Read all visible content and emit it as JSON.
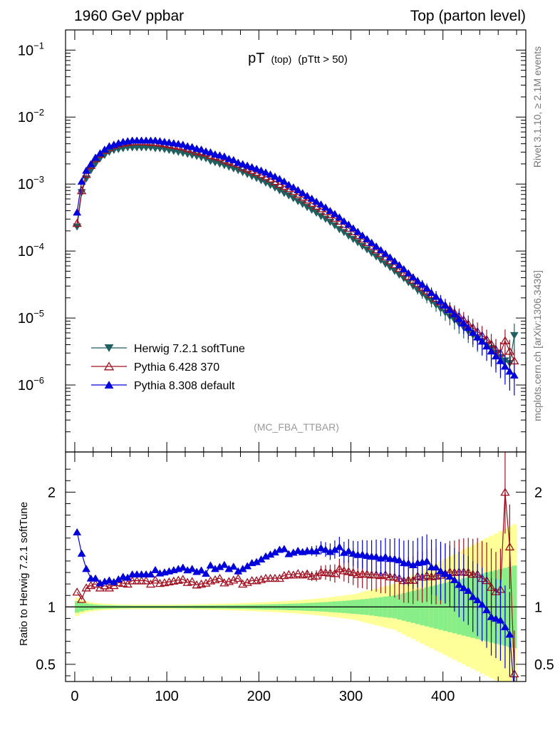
{
  "header": {
    "left": "1960 GeV ppbar",
    "right": "Top (parton level)"
  },
  "side": {
    "rivet": "Rivet 3.1.10, ≥ 2.1M events",
    "source": "mcplots.cern.ch [arXiv:1306.3436]"
  },
  "colors": {
    "herwig": "#1f5f5f",
    "pythia6": "#a01020",
    "pythia8": "#0000dd",
    "band_outer": "#ffff99",
    "band_inner": "#88ee88"
  },
  "chart_data": [
    {
      "type": "line",
      "scale": "log",
      "title_main": "pT",
      "title_small": "(top)",
      "title_rest": "(pTtt > 50)",
      "watermark": "(MC_FBA_TTBAR)",
      "xlim": [
        -10,
        490
      ],
      "ylim": [
        1e-07,
        0.2
      ],
      "ytick_labels": [
        {
          "value": 0.1,
          "mant": "10",
          "exp": "−1"
        },
        {
          "value": 0.01,
          "mant": "10",
          "exp": "−2"
        },
        {
          "value": 0.001,
          "mant": "10",
          "exp": "−3"
        },
        {
          "value": 0.0001,
          "mant": "10",
          "exp": "−4"
        },
        {
          "value": 1e-05,
          "mant": "10",
          "exp": "−5"
        },
        {
          "value": 1e-06,
          "mant": "10",
          "exp": "−6"
        }
      ],
      "x": [
        2.5,
        7.5,
        12.5,
        17.5,
        22.5,
        27.5,
        32.5,
        37.5,
        42.5,
        47.5,
        52.5,
        57.5,
        62.5,
        67.5,
        72.5,
        77.5,
        82.5,
        87.5,
        92.5,
        97.5,
        102.5,
        107.5,
        112.5,
        117.5,
        122.5,
        127.5,
        132.5,
        137.5,
        142.5,
        147.5,
        152.5,
        157.5,
        162.5,
        167.5,
        172.5,
        177.5,
        182.5,
        187.5,
        192.5,
        197.5,
        202.5,
        207.5,
        212.5,
        217.5,
        222.5,
        227.5,
        232.5,
        237.5,
        242.5,
        247.5,
        252.5,
        257.5,
        262.5,
        267.5,
        272.5,
        277.5,
        282.5,
        287.5,
        292.5,
        297.5,
        302.5,
        307.5,
        312.5,
        317.5,
        322.5,
        327.5,
        332.5,
        337.5,
        342.5,
        347.5,
        352.5,
        357.5,
        362.5,
        367.5,
        372.5,
        377.5,
        382.5,
        387.5,
        392.5,
        397.5,
        402.5,
        407.5,
        412.5,
        417.5,
        422.5,
        427.5,
        432.5,
        437.5,
        442.5,
        447.5,
        452.5,
        457.5,
        462.5,
        467.5,
        472.5,
        477.5
      ],
      "series": [
        {
          "name": "Herwig 7.2.1 softTune",
          "marker": "triangle-down",
          "color": "#1f5f5f",
          "values": [
            0.00023,
            0.00075,
            0.0012,
            0.0016,
            0.002,
            0.0024,
            0.0027,
            0.003,
            0.0032,
            0.0033,
            0.0034,
            0.0035,
            0.0035,
            0.0035,
            0.0035,
            0.0035,
            0.0035,
            0.0034,
            0.0034,
            0.0033,
            0.0032,
            0.0031,
            0.003,
            0.0029,
            0.0028,
            0.0027,
            0.0026,
            0.0025,
            0.0024,
            0.0022,
            0.0021,
            0.002,
            0.0019,
            0.0018,
            0.0017,
            0.0016,
            0.0015,
            0.0014,
            0.0013,
            0.00122,
            0.00113,
            0.00104,
            0.00096,
            0.00088,
            0.0008,
            0.00073,
            0.00067,
            0.00061,
            0.00055,
            0.0005,
            0.00045,
            0.00041,
            0.00037,
            0.00033,
            0.0003,
            0.00027,
            0.00024,
            0.00021,
            0.00019,
            0.000168,
            0.00015,
            0.000134,
            0.000118,
            0.000105,
            9.3e-05,
            8.2e-05,
            7.3e-05,
            6.4e-05,
            5.7e-05,
            5e-05,
            4.4e-05,
            3.9e-05,
            3.4e-05,
            3e-05,
            2.6e-05,
            2.3e-05,
            2e-05,
            1.78e-05,
            1.56e-05,
            1.37e-05,
            1.2e-05,
            1.05e-05,
            9.3e-06,
            8.2e-06,
            7.2e-06,
            6.3e-06,
            5.6e-06,
            4.9e-06,
            4.4e-06,
            3.9e-06,
            3.5e-06,
            3e-06,
            2.6e-06,
            2.3e-06,
            2.1e-06,
            5.5e-06
          ]
        },
        {
          "name": "Pythia 6.428 370",
          "marker": "triangle-up-open",
          "color": "#a01020",
          "values": [
            0.00026,
            0.0008,
            0.0014,
            0.0019,
            0.0024,
            0.0028,
            0.0032,
            0.0035,
            0.0038,
            0.004,
            0.0041,
            0.0042,
            0.0043,
            0.0043,
            0.0043,
            0.0043,
            0.0042,
            0.0042,
            0.0041,
            0.004,
            0.0039,
            0.0038,
            0.0037,
            0.0036,
            0.0034,
            0.0033,
            0.0031,
            0.003,
            0.0029,
            0.0027,
            0.0026,
            0.0025,
            0.0023,
            0.0022,
            0.0021,
            0.002,
            0.0018,
            0.0017,
            0.0016,
            0.0015,
            0.0014,
            0.0013,
            0.0012,
            0.0011,
            0.001,
            0.00093,
            0.00086,
            0.00078,
            0.00071,
            0.00064,
            0.00058,
            0.00052,
            0.00047,
            0.00043,
            0.00039,
            0.00035,
            0.00031,
            0.00028,
            0.00025,
            0.00022,
            0.000195,
            0.000172,
            0.000152,
            0.000135,
            0.000119,
            0.000105,
            9.3e-05,
            8.2e-05,
            7.2e-05,
            6.3e-05,
            5.5e-05,
            4.8e-05,
            4.2e-05,
            3.7e-05,
            3.3e-05,
            2.9e-05,
            2.55e-05,
            2.25e-05,
            1.98e-05,
            1.75e-05,
            1.55e-05,
            1.37e-05,
            1.21e-05,
            1.07e-05,
            9.4e-06,
            8.2e-06,
            7.2e-06,
            6.3e-06,
            5.5e-06,
            4.8e-06,
            4.1e-06,
            3.4e-06,
            3e-06,
            4.6e-06,
            3.2e-06,
            2.3e-06
          ]
        },
        {
          "name": "Pythia 8.308 default",
          "marker": "triangle-up",
          "color": "#0000dd",
          "values": [
            0.00038,
            0.0011,
            0.0016,
            0.002,
            0.0025,
            0.0029,
            0.0033,
            0.0037,
            0.0039,
            0.0041,
            0.0043,
            0.0044,
            0.0045,
            0.0045,
            0.0045,
            0.0045,
            0.0045,
            0.0045,
            0.0044,
            0.0043,
            0.0042,
            0.0041,
            0.004,
            0.0039,
            0.0037,
            0.0036,
            0.0034,
            0.0033,
            0.0031,
            0.003,
            0.0028,
            0.0027,
            0.0026,
            0.0024,
            0.0023,
            0.0021,
            0.002,
            0.0019,
            0.0018,
            0.0017,
            0.0016,
            0.0015,
            0.0014,
            0.0013,
            0.0012,
            0.0011,
            0.00098,
            0.0009,
            0.00082,
            0.00074,
            0.00067,
            0.00061,
            0.00055,
            0.0005,
            0.00045,
            0.0004,
            0.00036,
            0.00032,
            0.00028,
            0.00025,
            0.00022,
            0.000195,
            0.000172,
            0.000152,
            0.000134,
            0.000118,
            0.000104,
            9.2e-05,
            8.1e-05,
            7.1e-05,
            6.2e-05,
            5.4e-05,
            4.7e-05,
            4.1e-05,
            3.6e-05,
            3.2e-05,
            2.8e-05,
            2.4e-05,
            2.1e-05,
            1.8e-05,
            1.55e-05,
            1.33e-05,
            1.15e-05,
            9.8e-06,
            8.4e-06,
            7.2e-06,
            6.1e-06,
            5.2e-06,
            4.5e-06,
            3.8e-06,
            3.2e-06,
            2.7e-06,
            2.3e-06,
            1.9e-06,
            1.6e-06,
            1.4e-06
          ]
        }
      ]
    },
    {
      "type": "line",
      "scale": "linear",
      "ylabel": "Ratio to Herwig 7.2.1 softTune",
      "xlim": [
        -10,
        490
      ],
      "ylim": [
        0.35,
        2.35
      ],
      "yticks": [
        0.5,
        1,
        2
      ],
      "ytick_labels": [
        "0.5",
        "1",
        "2"
      ],
      "xticks": [
        0,
        100,
        200,
        300,
        400
      ],
      "xtick_labels": [
        "0",
        "100",
        "200",
        "300",
        "400"
      ],
      "band_inner_halfwidth": [
        0.05,
        0.04,
        0.03,
        0.025,
        0.02,
        0.018,
        0.016,
        0.015,
        0.014,
        0.013,
        0.012,
        0.012,
        0.011,
        0.011,
        0.011,
        0.011,
        0.011,
        0.011,
        0.011,
        0.011,
        0.011,
        0.011,
        0.012,
        0.012,
        0.012,
        0.012,
        0.013,
        0.013,
        0.013,
        0.014,
        0.014,
        0.015,
        0.015,
        0.016,
        0.016,
        0.017,
        0.017,
        0.018,
        0.019,
        0.02,
        0.021,
        0.022,
        0.023,
        0.024,
        0.025,
        0.026,
        0.028,
        0.029,
        0.03,
        0.032,
        0.034,
        0.036,
        0.038,
        0.04,
        0.042,
        0.045,
        0.048,
        0.05,
        0.053,
        0.056,
        0.06,
        0.063,
        0.067,
        0.07,
        0.075,
        0.08,
        0.085,
        0.09,
        0.095,
        0.1,
        0.11,
        0.12,
        0.13,
        0.14,
        0.15,
        0.16,
        0.17,
        0.18,
        0.19,
        0.2,
        0.21,
        0.22,
        0.23,
        0.24,
        0.25,
        0.26,
        0.27,
        0.28,
        0.29,
        0.3,
        0.31,
        0.32,
        0.33,
        0.34,
        0.35,
        0.36
      ],
      "band_outer_halfwidth": [
        0.08,
        0.06,
        0.05,
        0.04,
        0.035,
        0.03,
        0.028,
        0.026,
        0.024,
        0.022,
        0.021,
        0.02,
        0.02,
        0.02,
        0.02,
        0.02,
        0.02,
        0.02,
        0.02,
        0.02,
        0.02,
        0.021,
        0.021,
        0.022,
        0.022,
        0.023,
        0.023,
        0.024,
        0.025,
        0.026,
        0.027,
        0.028,
        0.029,
        0.03,
        0.031,
        0.032,
        0.033,
        0.035,
        0.036,
        0.038,
        0.04,
        0.042,
        0.044,
        0.046,
        0.048,
        0.05,
        0.053,
        0.056,
        0.059,
        0.062,
        0.065,
        0.068,
        0.072,
        0.076,
        0.08,
        0.085,
        0.09,
        0.095,
        0.1,
        0.105,
        0.11,
        0.12,
        0.13,
        0.14,
        0.15,
        0.16,
        0.17,
        0.18,
        0.19,
        0.2,
        0.22,
        0.24,
        0.26,
        0.28,
        0.3,
        0.32,
        0.34,
        0.36,
        0.38,
        0.4,
        0.42,
        0.44,
        0.46,
        0.48,
        0.5,
        0.52,
        0.54,
        0.56,
        0.58,
        0.6,
        0.62,
        0.64,
        0.66,
        0.68,
        0.7,
        0.72
      ]
    }
  ]
}
